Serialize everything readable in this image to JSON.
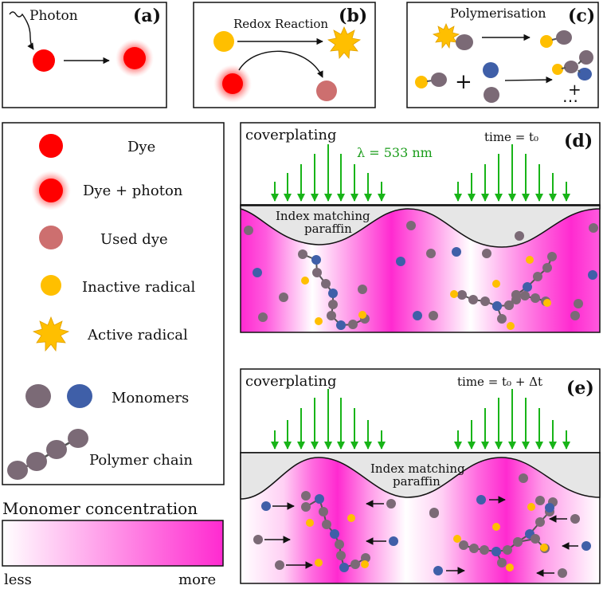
{
  "panels": {
    "a": {
      "label": "(a)",
      "caption": "Photon"
    },
    "b": {
      "label": "(b)",
      "caption": "Redox Reaction"
    },
    "c": {
      "label": "(c)",
      "caption": "Polymerisation",
      "plus": "+",
      "dots": "⋯"
    },
    "d": {
      "label": "(d)",
      "coverplating": "coverplating",
      "time": "time = t₀",
      "wavelength": "λ = 533 nm",
      "paraffin_line1": "Index matching",
      "paraffin_line2": "paraffin"
    },
    "e": {
      "label": "(e)",
      "coverplating": "coverplating",
      "time": "time = t₀ + Δt",
      "paraffin_line1": "Index matching",
      "paraffin_line2": "paraffin"
    }
  },
  "legend": {
    "dye": "Dye",
    "dye_photon": "Dye + photon",
    "used_dye": "Used dye",
    "inactive_radical": "Inactive radical",
    "active_radical": "Active radical",
    "monomers": "Monomers",
    "polymer_chain": "Polymer chain"
  },
  "colorbar": {
    "title": "Monomer concentration",
    "less": "less",
    "more": "more"
  },
  "colors": {
    "dye": "#ff0000",
    "used_dye": "#cd6f6f",
    "radical": "#ffbf00",
    "monomer_grey": "#7b6a76",
    "monomer_blue": "#3f5fa8",
    "magenta": "#ff2ad0",
    "green": "#18b418",
    "paraffin": "#e6e6e6"
  }
}
